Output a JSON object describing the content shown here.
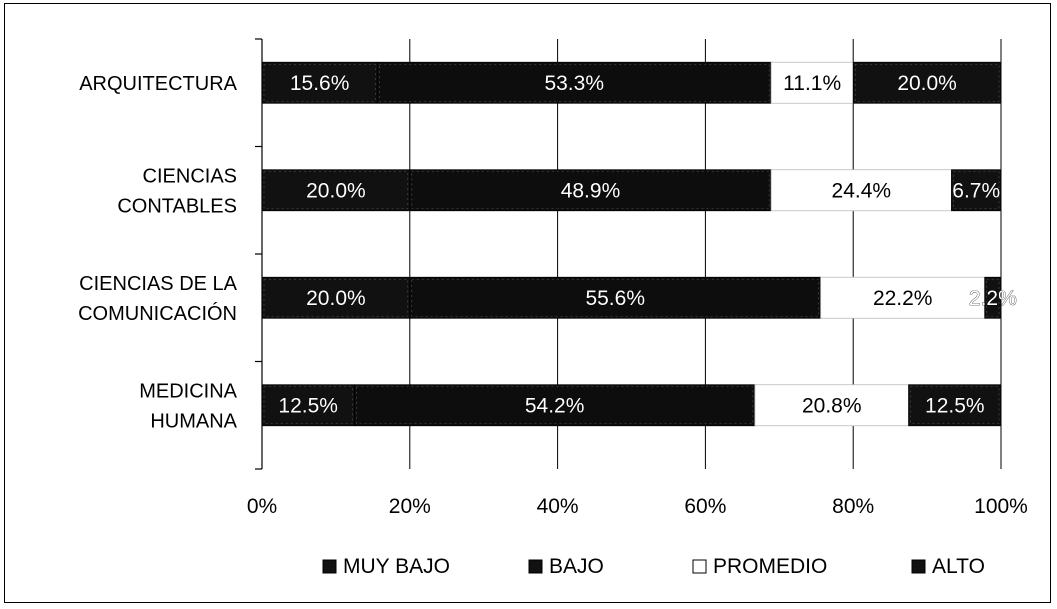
{
  "chart_data": {
    "type": "bar",
    "orientation": "horizontal",
    "stacked": "percent",
    "categories": [
      "ARQUITECTURA",
      "CIENCIAS CONTABLES",
      "CIENCIAS DE LA COMUNICACIÓN",
      "MEDICINA HUMANA"
    ],
    "category_lines": [
      [
        "ARQUITECTURA"
      ],
      [
        "CIENCIAS",
        "CONTABLES"
      ],
      [
        "CIENCIAS DE LA",
        "COMUNICACIÓN"
      ],
      [
        "MEDICINA",
        "HUMANA"
      ]
    ],
    "series": [
      {
        "name": "MUY BAJO",
        "color": "#111111",
        "values": [
          15.6,
          20.0,
          20.0,
          12.5
        ],
        "labels": [
          "15.6%",
          "20.0%",
          "20.0%",
          "12.5%"
        ]
      },
      {
        "name": "BAJO",
        "color": "#0d0d0d",
        "values": [
          53.3,
          48.9,
          55.6,
          54.2
        ],
        "labels": [
          "53.3%",
          "48.9%",
          "55.6%",
          "54.2%"
        ]
      },
      {
        "name": "PROMEDIO",
        "color": "#ffffff",
        "values": [
          11.1,
          24.4,
          22.2,
          20.8
        ],
        "labels": [
          "11.1%",
          "24.4%",
          "22.2%",
          "20.8%"
        ]
      },
      {
        "name": "ALTO",
        "color": "#111111",
        "values": [
          20.0,
          6.7,
          2.2,
          12.5
        ],
        "labels": [
          "20.0%",
          "6.7%",
          "2.2%",
          "12.5%"
        ]
      }
    ],
    "x_ticks": [
      "0%",
      "20%",
      "40%",
      "60%",
      "80%",
      "100%"
    ],
    "xlim": [
      0,
      100
    ],
    "grid": true,
    "legend_position": "bottom",
    "title": "",
    "xlabel": "",
    "ylabel": ""
  }
}
